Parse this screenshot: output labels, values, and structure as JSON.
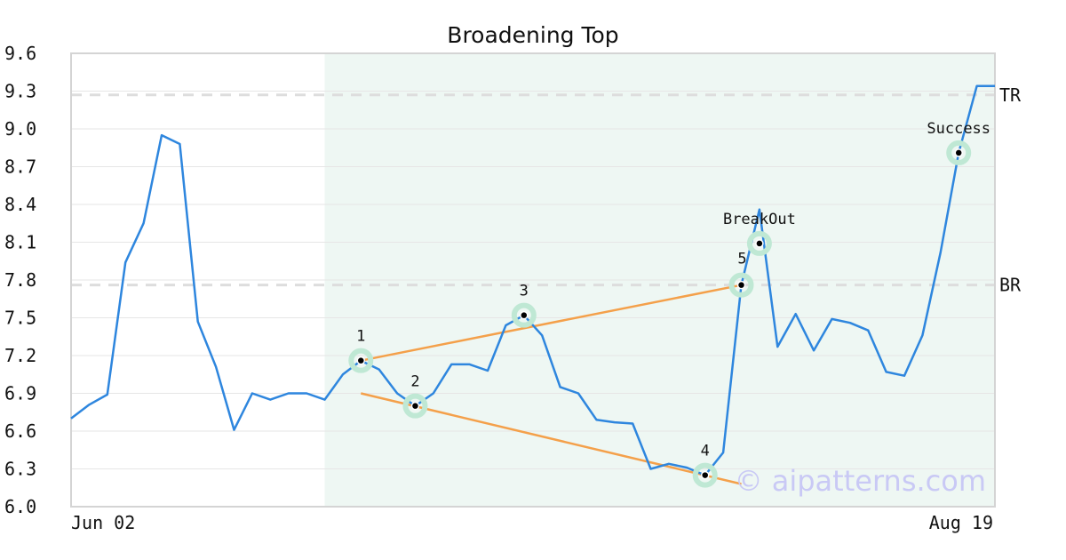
{
  "chart_data": {
    "type": "line",
    "title": "Broadening Top",
    "xlabel": "",
    "ylabel": "",
    "ylim": [
      6.0,
      9.6
    ],
    "y_ticks": [
      "6.0",
      "6.3",
      "6.6",
      "6.9",
      "7.2",
      "7.5",
      "7.8",
      "8.1",
      "8.4",
      "8.7",
      "9.0",
      "9.3",
      "9.6"
    ],
    "x_tick_labels": [
      "Jun 02",
      "Aug 19"
    ],
    "grid": true,
    "series": [
      {
        "values": [
          6.7,
          6.81,
          6.89,
          7.94,
          8.25,
          8.95,
          8.88,
          7.47,
          7.11,
          6.61,
          6.9,
          6.85,
          6.9,
          6.9,
          6.85,
          7.05,
          7.16,
          7.09,
          6.9,
          6.8,
          6.9,
          7.13,
          7.13,
          7.08,
          7.44,
          7.52,
          7.36,
          6.95,
          6.9,
          6.69,
          6.67,
          6.66,
          6.3,
          6.34,
          6.31,
          6.25,
          6.43,
          7.76,
          8.36,
          7.27,
          7.53,
          7.24,
          7.49,
          7.46,
          7.4,
          7.07,
          7.04,
          7.36,
          8.02,
          8.81,
          9.34,
          9.34
        ],
        "color": "#2e86de"
      }
    ],
    "pattern_region": {
      "start_index": 14,
      "end_index": 51,
      "color": "#eef7f3"
    },
    "trendlines": [
      {
        "from": [
          16,
          7.16
        ],
        "to": [
          37,
          7.76
        ],
        "color": "#f4a04a"
      },
      {
        "from": [
          16,
          6.9
        ],
        "to": [
          37,
          6.18
        ],
        "color": "#f4a04a"
      }
    ],
    "points": [
      {
        "label": "1",
        "x": 16,
        "y": 7.16,
        "label_pos": "above"
      },
      {
        "label": "2",
        "x": 19,
        "y": 6.8,
        "label_pos": "above"
      },
      {
        "label": "3",
        "x": 25,
        "y": 7.52,
        "label_pos": "above"
      },
      {
        "label": "4",
        "x": 35,
        "y": 6.25,
        "label_pos": "above"
      },
      {
        "label": "5",
        "x": 37,
        "y": 7.76,
        "label_pos": "above-left"
      },
      {
        "label": "BreakOut",
        "x": 38,
        "y": 8.09,
        "label_pos": "above"
      },
      {
        "label": "Success",
        "x": 49,
        "y": 8.81,
        "label_pos": "above"
      }
    ],
    "reference_lines": [
      {
        "label": "TR",
        "y": 9.27
      },
      {
        "label": "BR",
        "y": 7.76
      }
    ],
    "watermark": "© aipatterns.com"
  }
}
